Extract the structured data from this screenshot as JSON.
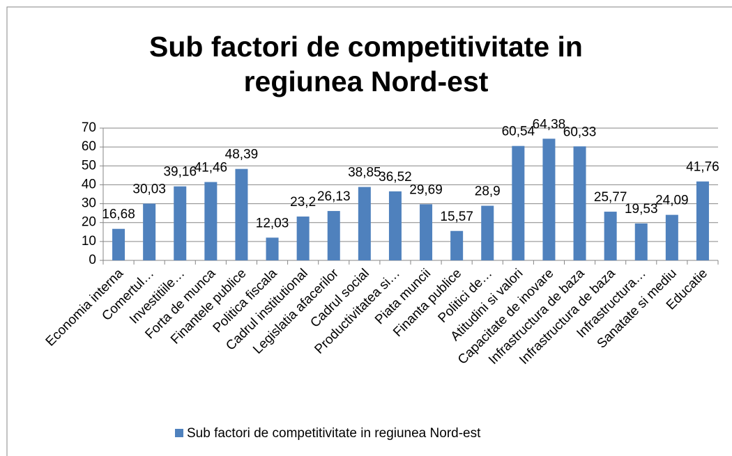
{
  "chart_data": {
    "type": "bar",
    "title": "Sub factori de competitivitate in regiunea Nord-est",
    "categories": [
      "Economia interna",
      "Comertul…",
      "Investitiile…",
      "Forta de munca",
      "Finantele publice",
      "Politica fiscala",
      "Cadrul institutional",
      "Legislatia afacerilor",
      "Cadrul social",
      "Productivitatea si…",
      "Piata muncii",
      "Finanta publice",
      "Politici de…",
      "Atitudini si valori",
      "Capacitate de inovare",
      "Infrastructura de baza",
      "Infrastructura de baza",
      "Infrastructura…",
      "Sanatate si mediu",
      "Educatie"
    ],
    "series": [
      {
        "name": "Sub factori de competitivitate in regiunea Nord-est",
        "color": "#4f81bd",
        "values": [
          16.68,
          30.03,
          39.16,
          41.46,
          48.39,
          12.03,
          23.2,
          26.13,
          38.85,
          36.52,
          29.69,
          15.57,
          28.9,
          60.54,
          64.38,
          60.33,
          25.77,
          19.53,
          24.09,
          41.76
        ],
        "value_labels": [
          "16,68",
          "30,03",
          "39,16",
          "41,46",
          "48,39",
          "12,03",
          "23,2",
          "26,13",
          "38,85",
          "36,52",
          "29,69",
          "15,57",
          "28,9",
          "60,54",
          "64,38",
          "60,33",
          "25,77",
          "19,53",
          "24,09",
          "41,76"
        ]
      }
    ],
    "ylim": [
      0,
      70
    ],
    "yticks": [
      0,
      10,
      20,
      30,
      40,
      50,
      60,
      70
    ],
    "grid": true,
    "legend": "bottom"
  }
}
